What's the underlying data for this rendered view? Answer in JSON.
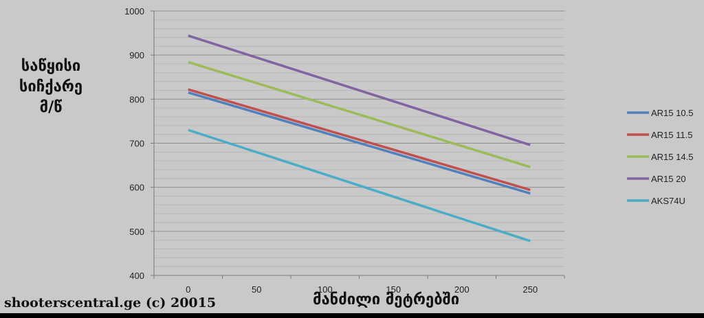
{
  "chart_data": {
    "type": "line",
    "x": [
      0,
      250
    ],
    "xticks": [
      0,
      50,
      100,
      150,
      200,
      250
    ],
    "yticks": [
      400,
      500,
      600,
      700,
      800,
      900,
      1000
    ],
    "ylim": [
      400,
      1000
    ],
    "xlim": [
      -25,
      275
    ],
    "ylabel_lines": [
      "საწყისი",
      "სიჩქარე",
      "მ/წ"
    ],
    "xlabel": "მანძილი მეტრებში",
    "legend_position": "right",
    "grid": true,
    "series": [
      {
        "name": "AR15 10.5",
        "color": "#4f81bd",
        "values": [
          815,
          586
        ]
      },
      {
        "name": "AR15 11.5",
        "color": "#c0504d",
        "values": [
          822,
          594
        ]
      },
      {
        "name": "AR15 14.5",
        "color": "#9bbb59",
        "values": [
          884,
          646
        ]
      },
      {
        "name": "AR15 20",
        "color": "#8064a2",
        "values": [
          944,
          696
        ]
      },
      {
        "name": "AKS74U",
        "color": "#4bacc6",
        "values": [
          730,
          478
        ]
      }
    ]
  },
  "credit": "shooterscentral.ge (c) 20015"
}
